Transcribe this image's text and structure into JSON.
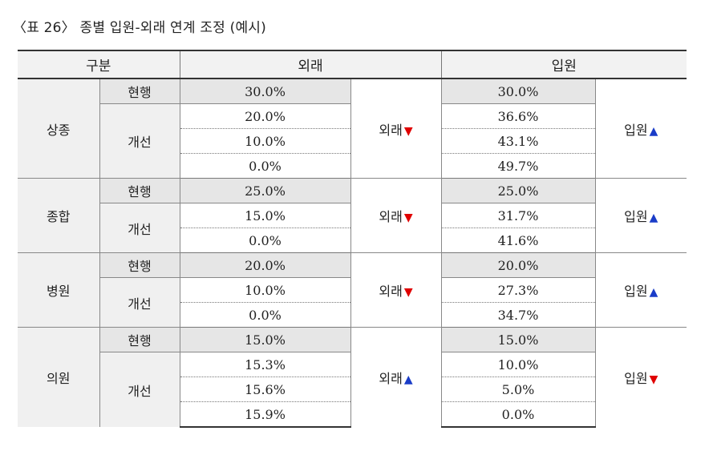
{
  "title": "〈표 26〉 종별 입원-외래 연계 조정 (예시)",
  "headers": {
    "category": "구분",
    "outpatient": "외래",
    "inpatient": "입원"
  },
  "labels": {
    "current": "현행",
    "improved": "개선",
    "outpatient_word": "외래",
    "inpatient_word": "입원"
  },
  "icons": {
    "down": "▼",
    "up": "▲",
    "down_color": "#e00000",
    "up_color": "#1a3cc8"
  },
  "groups": [
    {
      "name": "상종",
      "outpatient_dir": "down",
      "inpatient_dir": "up",
      "rows": [
        {
          "out": "30.0%",
          "in": "30.0%"
        },
        {
          "out": "20.0%",
          "in": "36.6%"
        },
        {
          "out": "10.0%",
          "in": "43.1%"
        },
        {
          "out": "0.0%",
          "in": "49.7%"
        }
      ]
    },
    {
      "name": "종합",
      "outpatient_dir": "down",
      "inpatient_dir": "up",
      "rows": [
        {
          "out": "25.0%",
          "in": "25.0%"
        },
        {
          "out": "15.0%",
          "in": "31.7%"
        },
        {
          "out": "0.0%",
          "in": "41.6%"
        }
      ]
    },
    {
      "name": "병원",
      "outpatient_dir": "down",
      "inpatient_dir": "up",
      "rows": [
        {
          "out": "20.0%",
          "in": "20.0%"
        },
        {
          "out": "10.0%",
          "in": "27.3%"
        },
        {
          "out": "0.0%",
          "in": "34.7%"
        }
      ]
    },
    {
      "name": "의원",
      "outpatient_dir": "up",
      "inpatient_dir": "down",
      "rows": [
        {
          "out": "15.0%",
          "in": "15.0%"
        },
        {
          "out": "15.3%",
          "in": "10.0%"
        },
        {
          "out": "15.6%",
          "in": "5.0%"
        },
        {
          "out": "15.9%",
          "in": "0.0%"
        }
      ]
    }
  ]
}
